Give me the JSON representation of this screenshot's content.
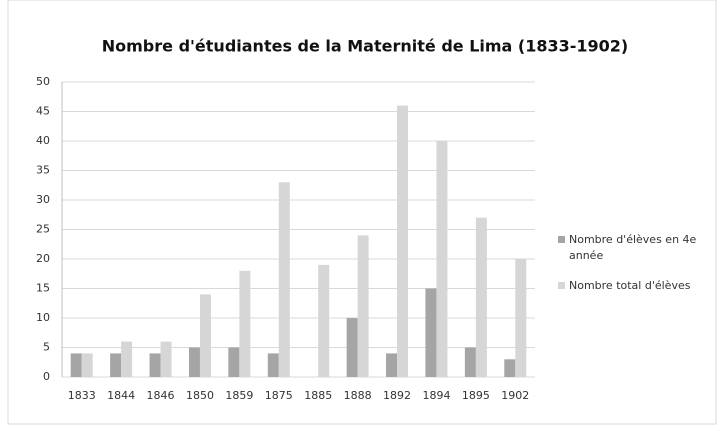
{
  "chart_data": {
    "type": "bar",
    "title": "Nombre d'étudiantes de la Maternité de Lima (1833-1902)",
    "categories": [
      "1833",
      "1844",
      "1846",
      "1850",
      "1859",
      "1875",
      "1885",
      "1888",
      "1892",
      "1894",
      "1895",
      "1902"
    ],
    "series": [
      {
        "name": "Nombre d'élèves en 4e année",
        "color": "#a5a5a5",
        "values": [
          4,
          4,
          4,
          5,
          5,
          4,
          0,
          10,
          4,
          15,
          5,
          3
        ]
      },
      {
        "name": "Nombre total d'élèves",
        "color": "#d6d6d6",
        "values": [
          4,
          6,
          6,
          14,
          18,
          33,
          19,
          24,
          46,
          40,
          27,
          20
        ]
      }
    ],
    "ylim": [
      0,
      50
    ],
    "yticks": [
      0,
      5,
      10,
      15,
      20,
      25,
      30,
      35,
      40,
      45,
      50
    ],
    "grid": true,
    "legend": "right"
  }
}
